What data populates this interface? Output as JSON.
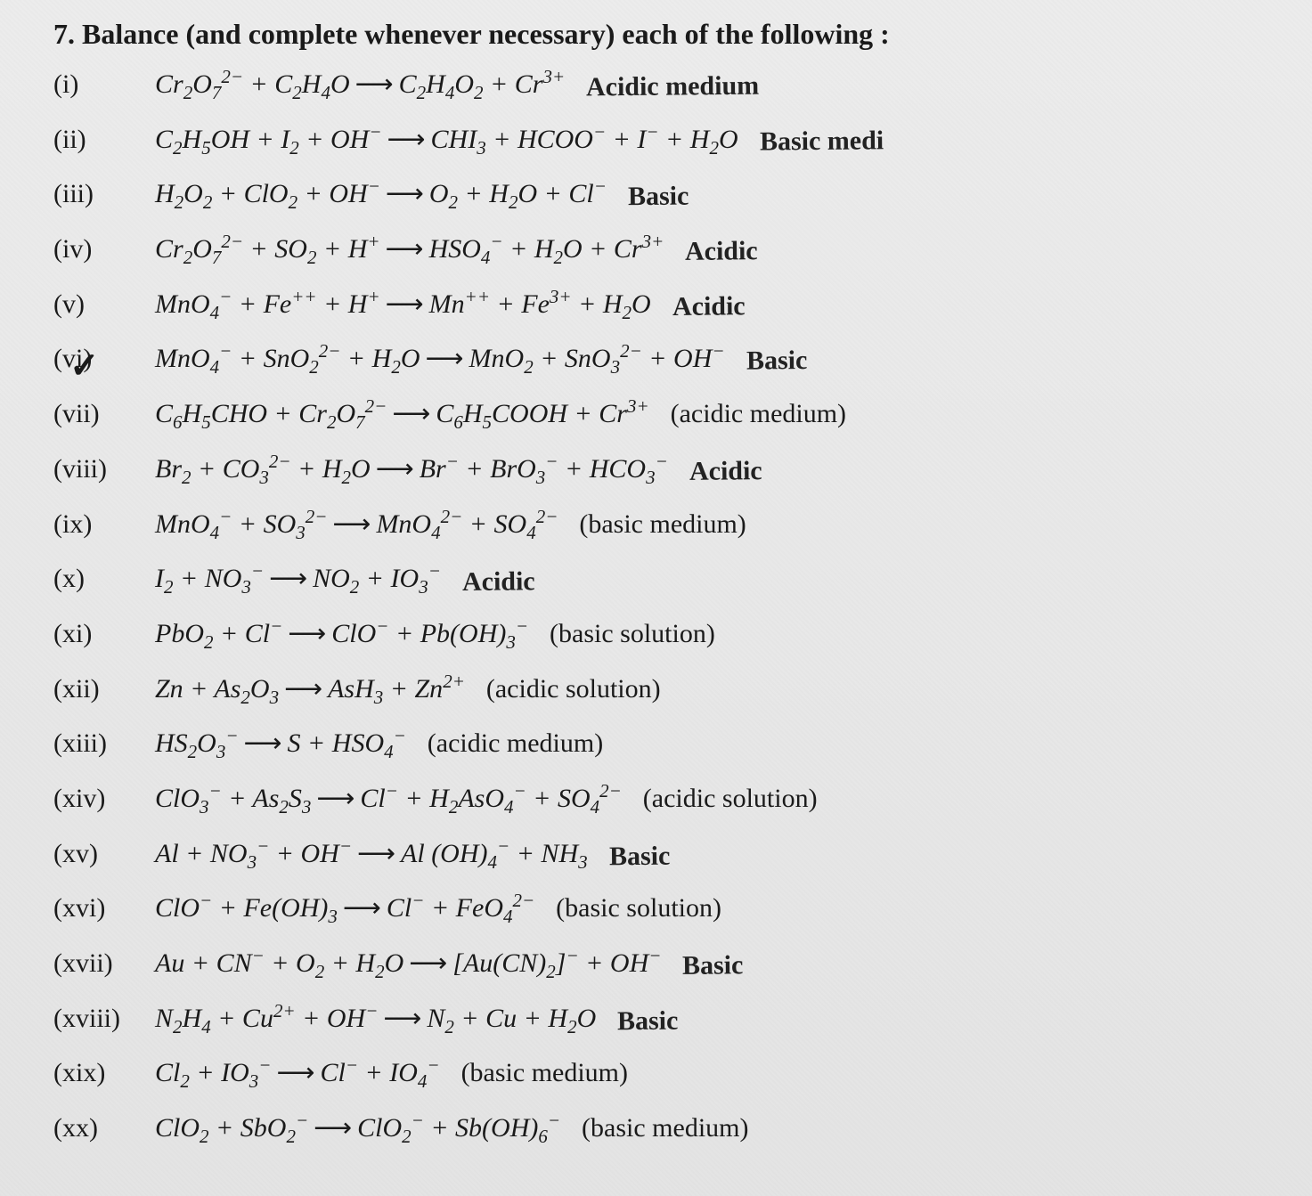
{
  "title": "7. Balance (and complete whenever necessary) each of the following :",
  "equations": [
    {
      "num": "(i)",
      "lhs": "Cr<sub>2</sub>O<sub>7</sub><sup>2−</sup> + C<sub>2</sub>H<sub>4</sub>O",
      "rhs": "C<sub>2</sub>H<sub>4</sub>O<sub>2</sub> + Cr<sup>3+</sup>",
      "note": "Acidic medium",
      "note_style": "hand"
    },
    {
      "num": "(ii)",
      "lhs": "C<sub>2</sub>H<sub>5</sub>OH + I<sub>2</sub> + OH<sup>−</sup>",
      "rhs": "CHI<sub>3</sub> + HCOO<sup>−</sup> + I<sup>−</sup> + H<sub>2</sub>O",
      "note": "Basic medi",
      "note_style": "hand"
    },
    {
      "num": "(iii)",
      "lhs": "H<sub>2</sub>O<sub>2</sub> + ClO<sub>2</sub> + OH<sup>−</sup>",
      "rhs": "O<sub>2</sub> + H<sub>2</sub>O + Cl<sup>−</sup>",
      "note": "Basic",
      "note_style": "hand"
    },
    {
      "num": "(iv)",
      "lhs": "Cr<sub>2</sub>O<sub>7</sub><sup>2−</sup> + SO<sub>2</sub> + H<sup>+</sup>",
      "rhs": "HSO<sub>4</sub><sup>−</sup> + H<sub>2</sub>O + Cr<sup>3+</sup>",
      "note": "Acidic",
      "note_style": "hand"
    },
    {
      "num": "(v)",
      "lhs": "MnO<sub>4</sub><sup>−</sup> + Fe<sup>++</sup> + H<sup>+</sup>",
      "rhs": "Mn<sup>++</sup> + Fe<sup>3+</sup> + H<sub>2</sub>O",
      "note": "Acidic",
      "note_style": "hand"
    },
    {
      "num": "(vi)",
      "lhs": "MnO<sub>4</sub><sup>−</sup> + SnO<sub>2</sub><sup>2−</sup> + H<sub>2</sub>O",
      "rhs": "MnO<sub>2</sub> + SnO<sub>3</sub><sup>2−</sup> + OH<sup>−</sup>",
      "note": "Basic",
      "note_style": "hand",
      "check": true
    },
    {
      "num": "(vii)",
      "lhs": "C<sub>6</sub>H<sub>5</sub>CHO + Cr<sub>2</sub>O<sub>7</sub><sup>2−</sup>",
      "rhs": "C<sub>6</sub>H<sub>5</sub>COOH + Cr<sup>3+</sup>",
      "note": "(acidic medium)",
      "note_style": "print"
    },
    {
      "num": "(viii)",
      "lhs": "Br<sub>2</sub> + CO<sub>3</sub><sup>2−</sup> + H<sub>2</sub>O",
      "rhs": "Br<sup>−</sup> + BrO<sub>3</sub><sup>−</sup> + HCO<sub>3</sub><sup>−</sup>",
      "note": "Acidic",
      "note_style": "hand"
    },
    {
      "num": "(ix)",
      "lhs": "MnO<sub>4</sub><sup>−</sup> + SO<sub>3</sub><sup>2−</sup>",
      "rhs": "MnO<sub>4</sub><sup>2−</sup> + SO<sub>4</sub><sup>2−</sup>",
      "note": "(basic medium)",
      "note_style": "print"
    },
    {
      "num": "(x)",
      "lhs": "I<sub>2</sub> + NO<sub>3</sub><sup>−</sup>",
      "rhs": "NO<sub>2</sub> + IO<sub>3</sub><sup>−</sup>",
      "note": "Acidic",
      "note_style": "hand"
    },
    {
      "num": "(xi)",
      "lhs": "PbO<sub>2</sub> + Cl<sup>−</sup>",
      "rhs": "ClO<sup>−</sup> + Pb(OH)<sub>3</sub><sup>−</sup>",
      "note": "(basic solution)",
      "note_style": "print"
    },
    {
      "num": "(xii)",
      "lhs": "Zn + As<sub>2</sub>O<sub>3</sub>",
      "rhs": "AsH<sub>3</sub> + Zn<sup>2+</sup>",
      "note": "(acidic solution)",
      "note_style": "print"
    },
    {
      "num": "(xiii)",
      "lhs": "HS<sub>2</sub>O<sub>3</sub><sup>−</sup>",
      "rhs": "S + HSO<sub>4</sub><sup>−</sup>",
      "note": "(acidic medium)",
      "note_style": "print"
    },
    {
      "num": "(xiv)",
      "lhs": "ClO<sub>3</sub><sup>−</sup> + As<sub>2</sub>S<sub>3</sub>",
      "rhs": "Cl<sup>−</sup> + H<sub>2</sub>AsO<sub>4</sub><sup>−</sup> + SO<sub>4</sub><sup>2−</sup>",
      "note": "(acidic solution)",
      "note_style": "print"
    },
    {
      "num": "(xv)",
      "lhs": "Al + NO<sub>3</sub><sup>−</sup> + OH<sup>−</sup>",
      "rhs": "Al (OH)<sub>4</sub><sup>−</sup> + NH<sub>3</sub>",
      "note": "Basic",
      "note_style": "hand"
    },
    {
      "num": "(xvi)",
      "lhs": "ClO<sup>−</sup> + Fe(OH)<sub>3</sub>",
      "rhs": "Cl<sup>−</sup> + FeO<sub>4</sub><sup>2−</sup>",
      "note": "(basic solution)",
      "note_style": "print"
    },
    {
      "num": "(xvii)",
      "lhs": "Au + CN<sup>−</sup> + O<sub>2</sub> + H<sub>2</sub>O",
      "rhs": "[Au(CN)<sub>2</sub>]<sup>−</sup> + OH<sup>−</sup>",
      "note": "Basic",
      "note_style": "hand"
    },
    {
      "num": "(xviii)",
      "lhs": "N<sub>2</sub>H<sub>4</sub> + Cu<sup>2+</sup> + OH<sup>−</sup>",
      "rhs": "N<sub>2</sub> + Cu + H<sub>2</sub>O",
      "note": "Basic",
      "note_style": "hand"
    },
    {
      "num": "(xix)",
      "lhs": "Cl<sub>2</sub> + IO<sub>3</sub><sup>−</sup>",
      "rhs": "Cl<sup>−</sup> + IO<sub>4</sub><sup>−</sup>",
      "note": "(basic medium)",
      "note_style": "print"
    },
    {
      "num": "(xx)",
      "lhs": "ClO<sub>2</sub> + SbO<sub>2</sub><sup>−</sup>",
      "rhs": "ClO<sub>2</sub><sup>−</sup> + Sb(OH)<sub>6</sub><sup>−</sup>",
      "note": "(basic medium)",
      "note_style": "print"
    }
  ],
  "arrow": "⟶",
  "colors": {
    "bg": "#e8e8e8",
    "text": "#1a1a1a"
  },
  "fonts": {
    "body": "Times New Roman",
    "hand": "Comic Sans MS"
  }
}
